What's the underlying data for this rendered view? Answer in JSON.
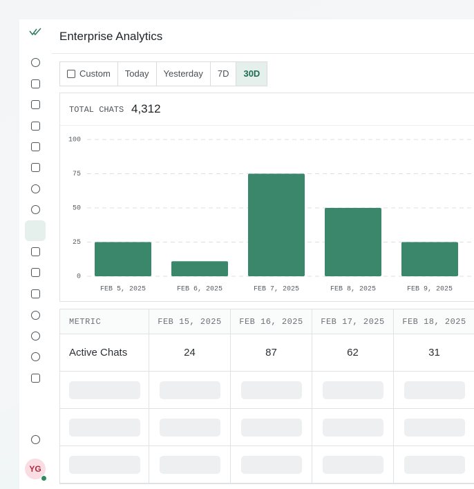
{
  "app": {
    "title": "Enterprise Analytics",
    "user_initials": "YG"
  },
  "filters": {
    "options": [
      "Custom",
      "Today",
      "Yesterday",
      "7D",
      "30D"
    ],
    "active_index": 4
  },
  "summary": {
    "label": "TOTAL CHATS",
    "value": "4,312"
  },
  "chart": {
    "type": "bar",
    "categories": [
      "FEB 5, 2025",
      "FEB 6, 2025",
      "FEB 7, 2025",
      "FEB 8, 2025",
      "FEB 9, 2025"
    ],
    "values": [
      25,
      11,
      75,
      50,
      25
    ],
    "color": "#3b876c",
    "ylim": [
      0,
      100
    ],
    "yticks": [
      0,
      25,
      50,
      75,
      100
    ],
    "grid": true
  },
  "table": {
    "header": [
      "METRIC",
      "FEB 15, 2025",
      "FEB 16, 2025",
      "FEB 17, 2025",
      "FEB 18, 2025"
    ],
    "rows": [
      [
        "Active Chats",
        "24",
        "87",
        "62",
        "31"
      ]
    ]
  }
}
